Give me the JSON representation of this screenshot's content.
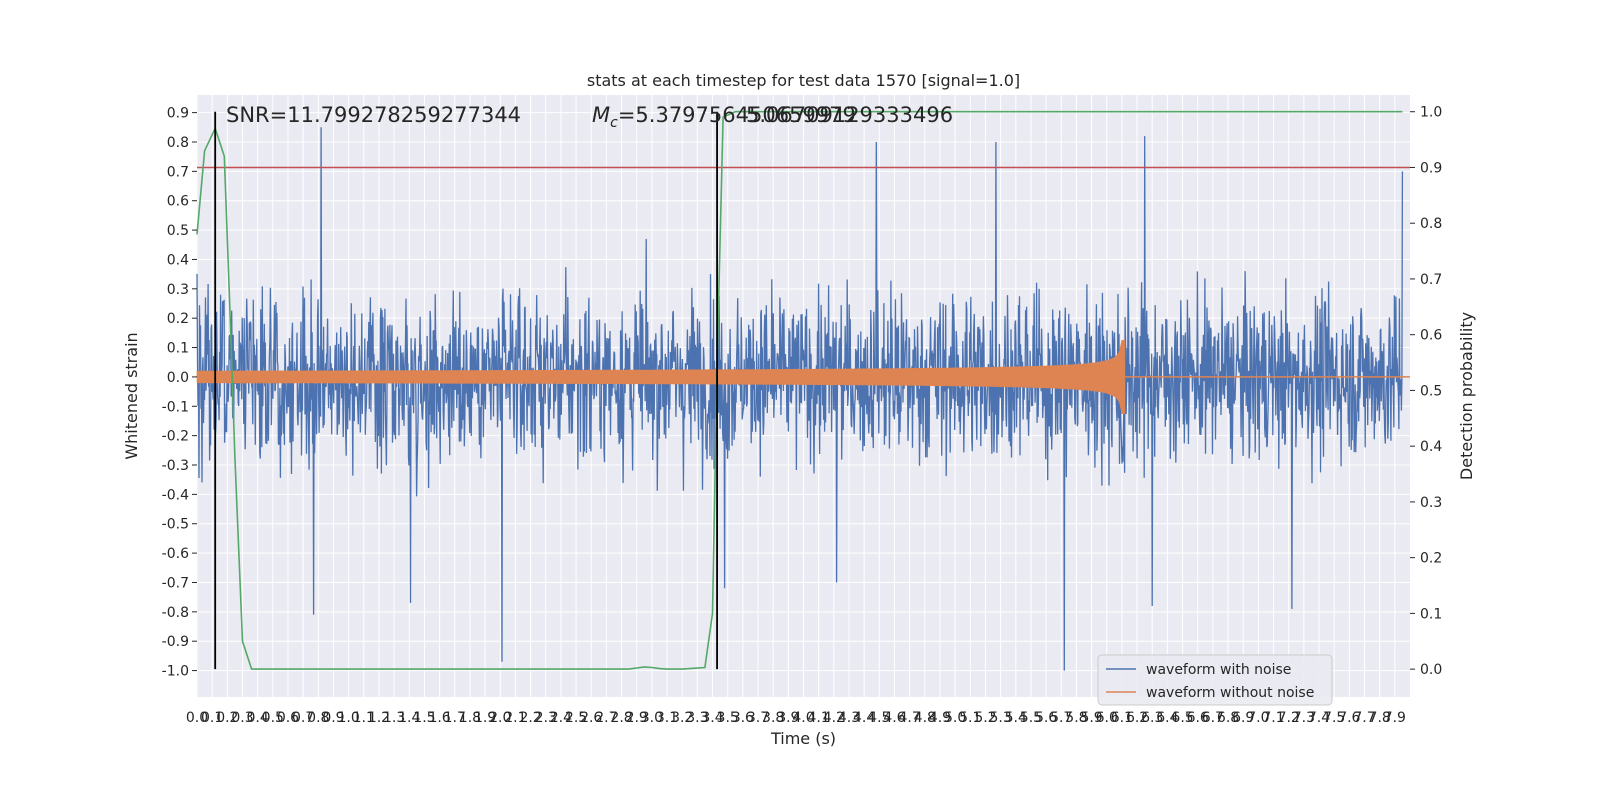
{
  "chart_data": {
    "type": "line",
    "title": "stats at each timestep for test data 1570 [signal=1.0]",
    "xlabel": "Time (s)",
    "ylabel": "Whitened strain",
    "ylabel_right": "Detection probability",
    "xlim": [
      0.0,
      8.0
    ],
    "ylim": [
      -1.09,
      0.96
    ],
    "ylim_right": [
      -0.05,
      1.03
    ],
    "x_ticks": [
      0.0,
      0.1,
      0.2,
      0.3,
      0.4,
      0.5,
      0.6,
      0.7,
      0.8,
      0.9,
      1.0,
      1.1,
      1.2,
      1.3,
      1.4,
      1.5,
      1.6,
      1.7,
      1.8,
      1.9,
      2.0,
      2.1,
      2.2,
      2.3,
      2.4,
      2.5,
      2.6,
      2.7,
      2.8,
      2.9,
      3.0,
      3.1,
      3.2,
      3.3,
      3.4,
      3.5,
      3.6,
      3.7,
      3.8,
      3.9,
      4.0,
      4.1,
      4.2,
      4.3,
      4.4,
      4.5,
      4.6,
      4.7,
      4.8,
      4.9,
      5.0,
      5.1,
      5.2,
      5.3,
      5.4,
      5.5,
      5.6,
      5.7,
      5.8,
      5.9,
      6.0,
      6.1,
      6.2,
      6.3,
      6.4,
      6.5,
      6.6,
      6.7,
      6.8,
      6.9,
      7.0,
      7.1,
      7.2,
      7.3,
      7.4,
      7.5,
      7.6,
      7.7,
      7.8,
      7.9
    ],
    "y_ticks": [
      0.9,
      0.8,
      0.7,
      0.6,
      0.5,
      0.4,
      0.3,
      0.2,
      0.1,
      0.0,
      -0.1,
      -0.2,
      -0.3,
      -0.4,
      -0.5,
      -0.6,
      -0.7,
      -0.8,
      -0.9,
      -1.0
    ],
    "y_ticks_right": [
      1.0,
      0.9,
      0.8,
      0.7,
      0.6,
      0.5,
      0.4,
      0.3,
      0.2,
      0.1,
      0.0
    ],
    "annotations": {
      "snr": "SNR=11.799278259277344",
      "mc_symbol": "M",
      "mc_sub": "c",
      "mc_value": "=5.379756450659979",
      "mc_overlap": "5.06709129333496"
    },
    "threshold": {
      "value": 0.9,
      "color": "#c44e52"
    },
    "vertical_lines": [
      0.12,
      3.43
    ],
    "series": [
      {
        "name": "waveform with noise",
        "axis": "left",
        "color": "#4c72b0",
        "description_stats": {
          "typical_abs": 0.35,
          "max_spikes": [
            [
              0.82,
              0.85
            ],
            [
              6.25,
              0.82
            ],
            [
              7.95,
              0.7
            ],
            [
              4.48,
              0.8
            ],
            [
              5.27,
              0.8
            ],
            [
              5.72,
              -1.0
            ],
            [
              2.01,
              -0.97
            ],
            [
              1.41,
              -0.77
            ],
            [
              0.77,
              -0.81
            ],
            [
              7.22,
              -0.79
            ],
            [
              6.3,
              -0.78
            ],
            [
              3.48,
              -0.72
            ],
            [
              4.22,
              -0.7
            ]
          ]
        }
      },
      {
        "name": "waveform without noise",
        "axis": "left",
        "color": "#dd8452",
        "chirp": {
          "start_time": 0.0,
          "merger_time": 6.1,
          "start_amp": 0.02,
          "merger_amp": 0.3,
          "ringdown_min": -0.23,
          "start_freq_hz": 18,
          "end_freq_hz": 240
        }
      },
      {
        "name": "",
        "axis": "right",
        "color": "#55a868",
        "x": [
          0.0,
          0.05,
          0.12,
          0.18,
          0.22,
          0.25,
          0.3,
          0.36,
          0.45,
          0.6,
          1.0,
          1.5,
          2.0,
          2.5,
          2.85,
          2.9,
          2.95,
          3.0,
          3.05,
          3.1,
          3.2,
          3.35,
          3.4,
          3.43,
          3.47,
          3.55,
          3.7,
          4.0,
          5.0,
          6.0,
          7.0,
          7.95
        ],
        "values": [
          0.78,
          0.93,
          0.97,
          0.92,
          0.62,
          0.38,
          0.05,
          0.0,
          0.0,
          0.0,
          0.0,
          0.0,
          0.0,
          0.0,
          0.0,
          0.002,
          0.004,
          0.003,
          0.001,
          0.0,
          0.0,
          0.003,
          0.1,
          0.55,
          0.99,
          1.0,
          1.0,
          1.0,
          1.0,
          1.0,
          1.0,
          1.0
        ]
      }
    ],
    "legend": {
      "placement": "lower-right",
      "entries": [
        "waveform with noise",
        "waveform without noise"
      ]
    },
    "grid": true,
    "colors": {
      "background": "#eaeaf2",
      "grid": "#ffffff",
      "vline": "#000000"
    }
  }
}
